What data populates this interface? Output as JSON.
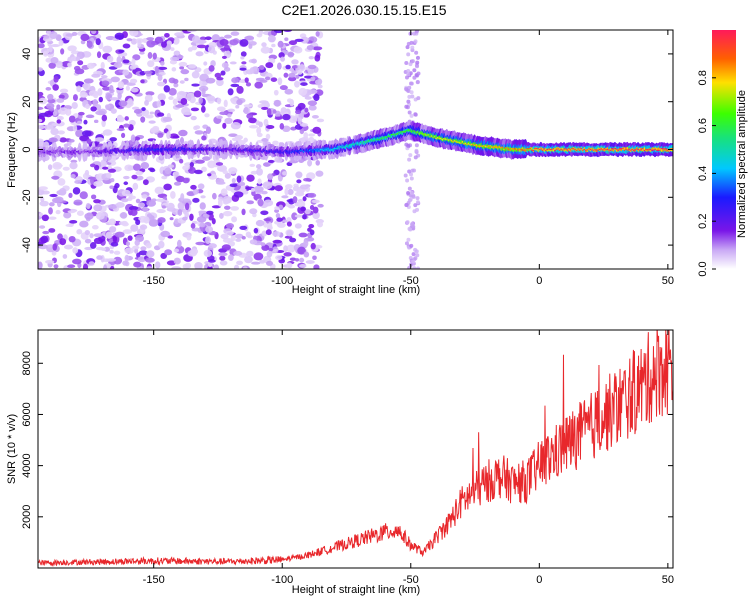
{
  "title": "C2E1.2026.030.15.15.E15",
  "chart_data": [
    {
      "type": "heatmap",
      "xlabel": "Height of straight line (km)",
      "ylabel": "Frequency (Hz)",
      "xlim": [
        -195,
        52
      ],
      "ylim": [
        -50,
        50
      ],
      "xticks": [
        -150,
        -100,
        -50,
        0,
        50
      ],
      "yticks": [
        -40,
        -20,
        0,
        20,
        40
      ],
      "grid": false,
      "colorbar": {
        "label": "Normalized spectral amplitude",
        "range": [
          0,
          1
        ],
        "ticks": [
          "0.0",
          "0.2",
          "0.4",
          "0.6",
          "0.8"
        ],
        "colormap": "rainbow"
      },
      "ridge": {
        "description_points_x_km": [
          -175,
          -150,
          -120,
          -100,
          -80,
          -60,
          -50,
          -40,
          -25,
          -10,
          0,
          25,
          52
        ],
        "center_freq_hz": [
          -1,
          0,
          0,
          -1,
          0,
          5,
          8,
          5,
          2,
          0,
          0,
          0,
          0
        ],
        "amplitude": [
          0.15,
          0.3,
          0.2,
          0.25,
          0.45,
          0.6,
          0.65,
          0.75,
          0.8,
          0.85,
          0.95,
          1.0,
          1.0
        ]
      },
      "noise_region_km": [
        -195,
        -85
      ]
    },
    {
      "type": "line",
      "xlabel": "Height of straight line (km)",
      "ylabel": "SNR (10 * v/v)",
      "xlim": [
        -195,
        52
      ],
      "ylim": [
        0,
        9300
      ],
      "xticks": [
        -150,
        -100,
        -50,
        0,
        50
      ],
      "yticks": [
        2000,
        4000,
        6000,
        8000
      ],
      "grid": false,
      "series": [
        {
          "color": "#e8282c",
          "envelope_x_km": [
            -195,
            -150,
            -120,
            -100,
            -90,
            -80,
            -70,
            -60,
            -55,
            -50,
            -45,
            -40,
            -35,
            -30,
            -25,
            -20,
            -15,
            -10,
            -5,
            0,
            10,
            20,
            30,
            40,
            45,
            52
          ],
          "envelope_y": [
            200,
            280,
            250,
            320,
            500,
            800,
            1100,
            1400,
            1500,
            900,
            600,
            1200,
            1800,
            2600,
            3000,
            3400,
            3600,
            3300,
            3400,
            4000,
            4800,
            5500,
            6300,
            7100,
            7700,
            8000
          ]
        }
      ]
    }
  ]
}
